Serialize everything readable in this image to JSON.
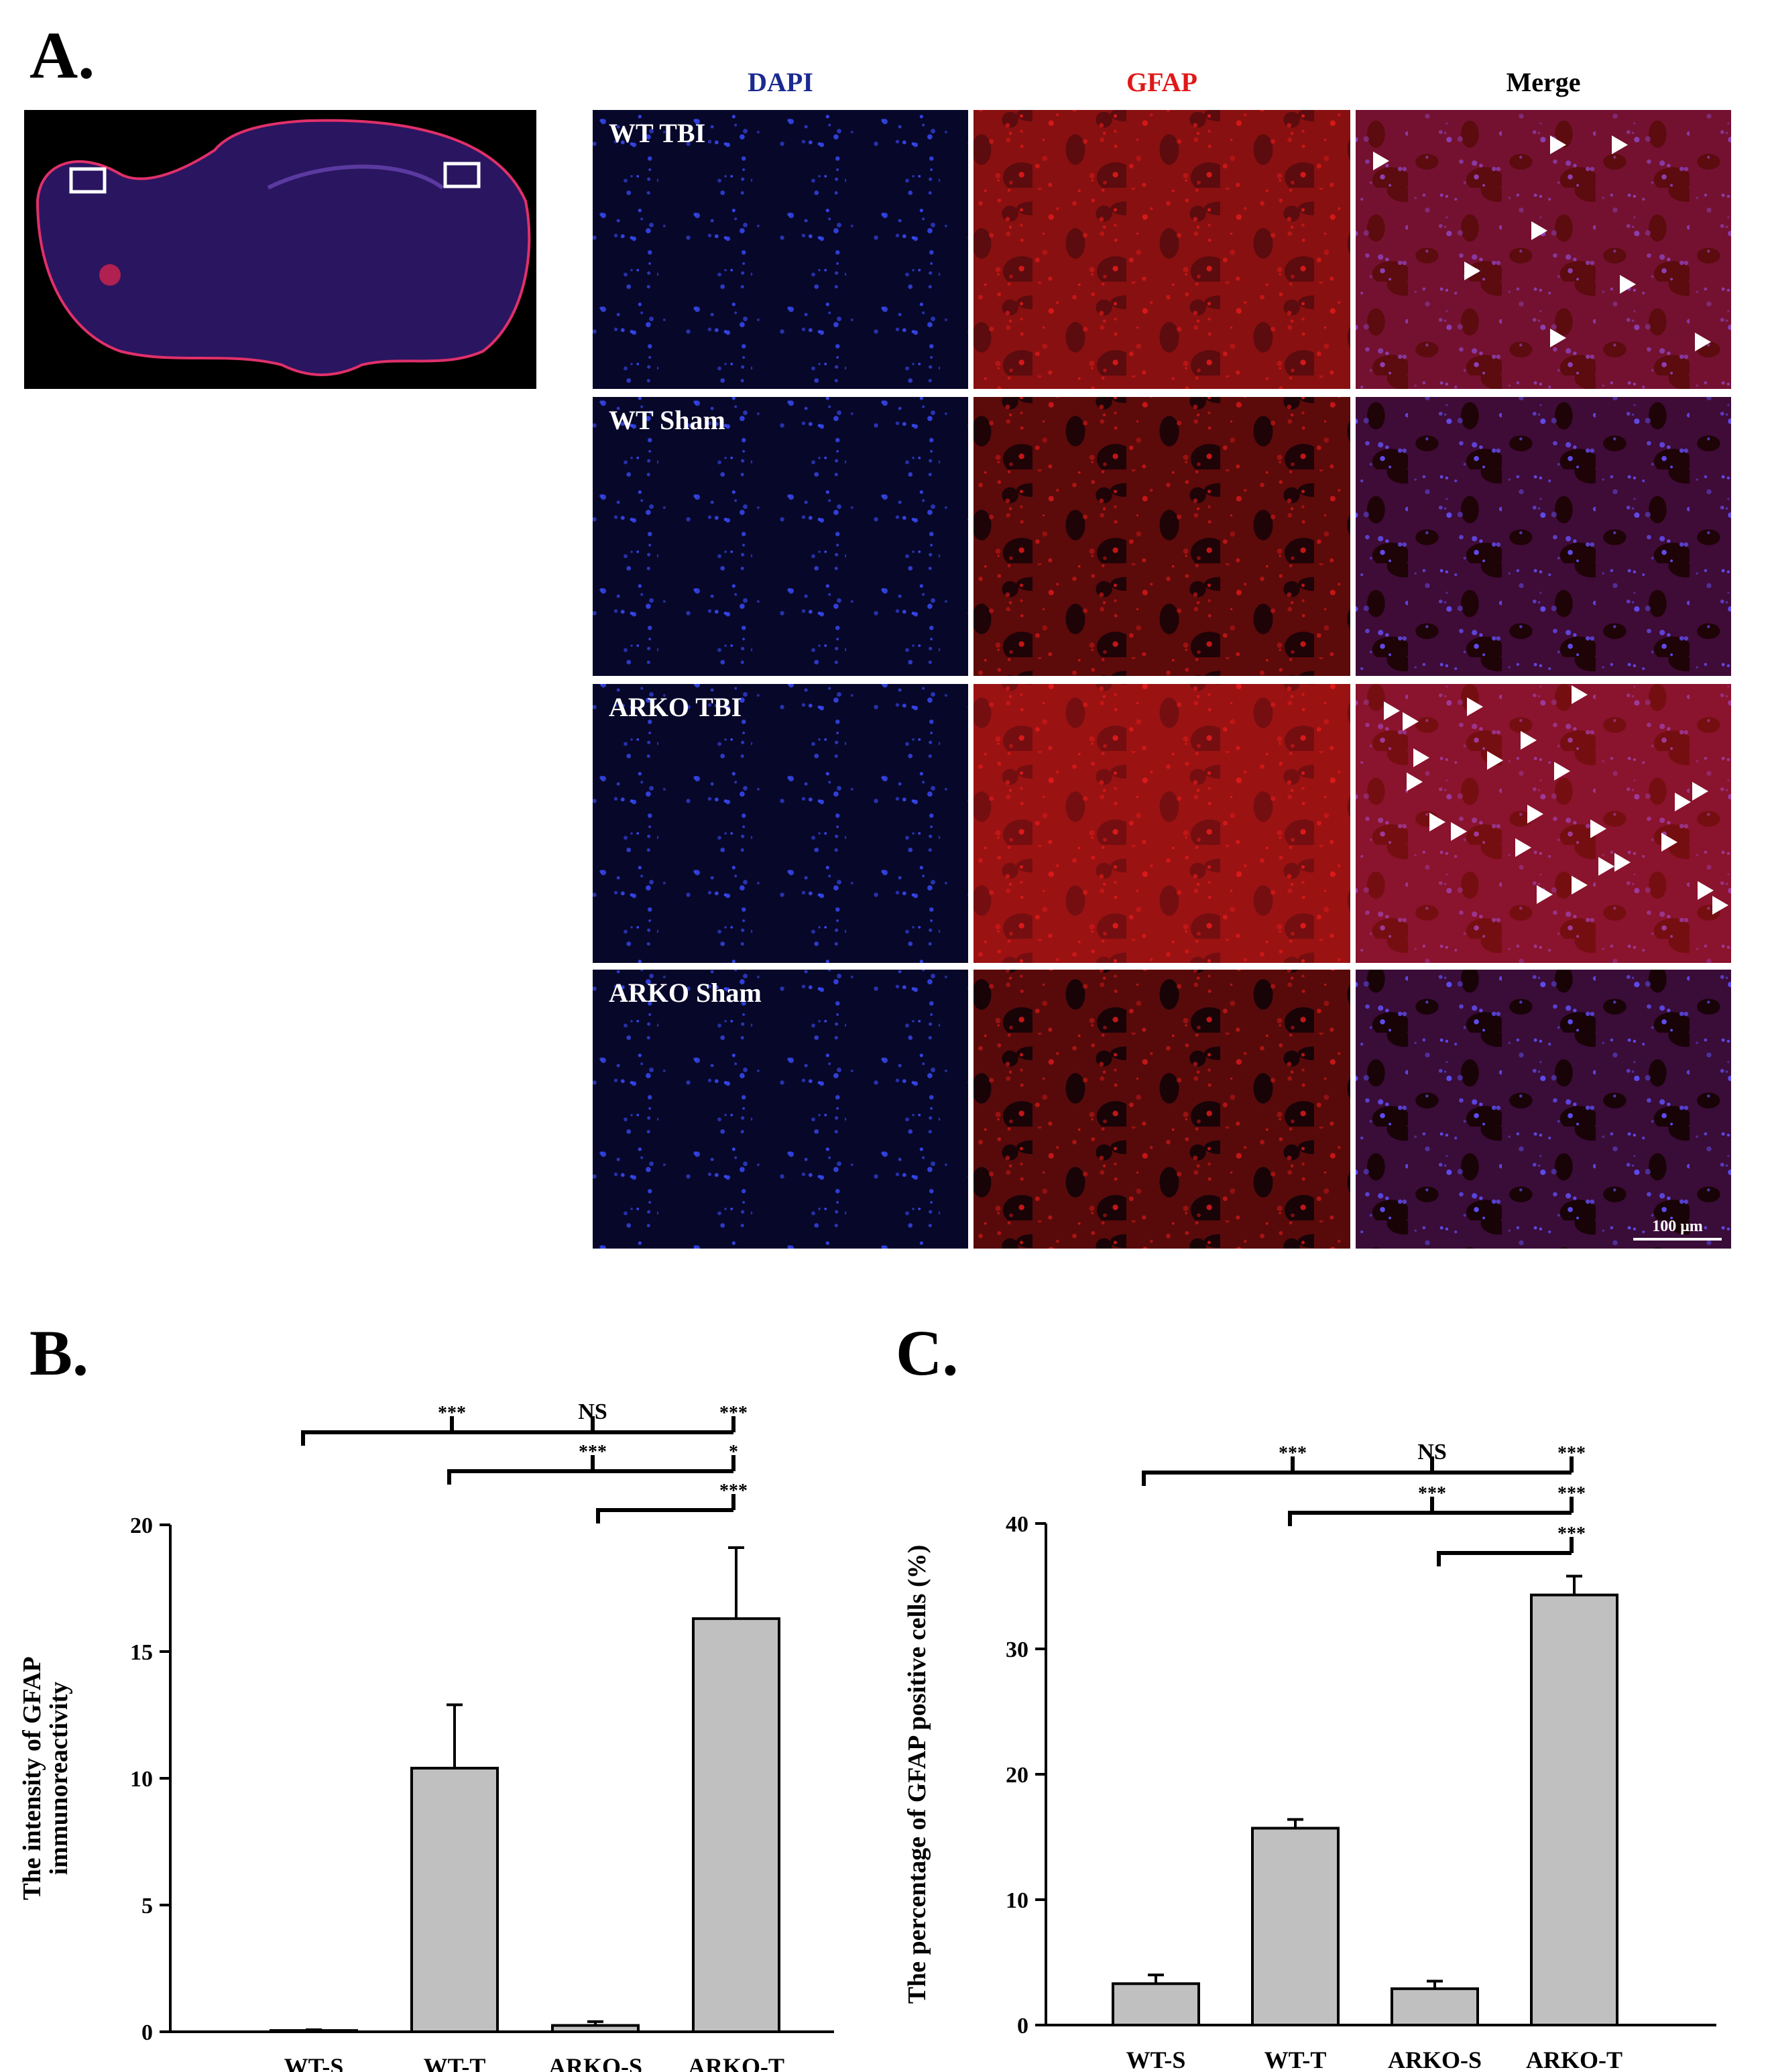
{
  "panel_a": {
    "label": "A.",
    "columns": [
      "DAPI",
      "GFAP",
      "Merge"
    ],
    "rows": [
      "WT TBI",
      "WT Sham",
      "ARKO TBI",
      "ARKO Sham"
    ],
    "scale_bar": "100 μm"
  },
  "chart_data": [
    {
      "type": "bar",
      "panel_label": "B.",
      "ylabel": [
        "The intensity of GFAP",
        "immunoreactivity"
      ],
      "categories": [
        "WT-S",
        "WT-T",
        "ARKO-S",
        "ARKO-T"
      ],
      "values": [
        0.05,
        10.4,
        0.25,
        16.3
      ],
      "errors": [
        0.03,
        2.5,
        0.15,
        2.8
      ],
      "color": "#c0c0c0",
      "ylim": [
        0,
        20
      ],
      "yticks": [
        0,
        5,
        10,
        15,
        20
      ],
      "significance": [
        [
          null,
          "***",
          "NS",
          "***"
        ],
        [
          null,
          null,
          "***",
          "*"
        ],
        [
          null,
          null,
          null,
          "***"
        ]
      ]
    },
    {
      "type": "bar",
      "panel_label": "C.",
      "ylabel": [
        "The percentage of GFAP positive cells  (%)"
      ],
      "categories": [
        "WT-S",
        "WT-T",
        "ARKO-S",
        "ARKO-T"
      ],
      "values": [
        3.3,
        15.7,
        2.9,
        34.3
      ],
      "errors": [
        0.7,
        0.7,
        0.6,
        1.5
      ],
      "color": "#c0c0c0",
      "ylim": [
        0,
        40
      ],
      "yticks": [
        0,
        10,
        20,
        30,
        40
      ],
      "significance": [
        [
          null,
          "***",
          "NS",
          "***"
        ],
        [
          null,
          null,
          "***",
          "***"
        ],
        [
          null,
          null,
          null,
          "***"
        ]
      ]
    }
  ]
}
